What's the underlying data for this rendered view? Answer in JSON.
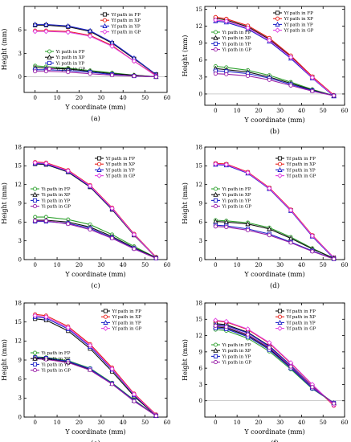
{
  "figure": {
    "ylabel": "Height (mm)",
    "xlabel": "Y coordinate (mm)"
  },
  "colors": {
    "FP": "#111111",
    "XP": "#e8201a",
    "YP": "#1e24c8",
    "GP": "#e040e0",
    "Yi_FP": "#2ea12e",
    "Yi_XP": "#111111",
    "Yi_YP": "#1e24c8",
    "Yi_GP": "#9a20a8"
  },
  "chart_data": [
    {
      "type": "line",
      "panel_label": "(a)",
      "xlabel": "Y coordinate (mm)",
      "ylabel": "Height (mm)",
      "xlim": [
        -5,
        60
      ],
      "ylim": [
        -2,
        9
      ],
      "xticks": [
        "0",
        "10",
        "20",
        "30",
        "40",
        "50",
        "60"
      ],
      "yticks": [
        "0",
        "3",
        "6"
      ],
      "x": [
        0,
        5,
        15,
        25,
        35,
        45,
        55
      ],
      "series": [
        {
          "name": "Yf path in FP",
          "values": [
            6.6,
            6.6,
            6.4,
            5.8,
            4.3,
            2.3,
            0.3
          ]
        },
        {
          "name": "Yf path in XP",
          "values": [
            5.9,
            5.9,
            5.8,
            5.3,
            4.0,
            2.0,
            0.2
          ]
        },
        {
          "name": "Yf path in YP",
          "values": [
            6.7,
            6.7,
            6.5,
            5.9,
            4.4,
            2.4,
            0.3
          ]
        },
        {
          "name": "Yf path in GP",
          "values": [
            5.8,
            5.8,
            5.7,
            5.2,
            3.9,
            2.0,
            0.1
          ]
        },
        {
          "name": "Yi path in FP",
          "values": [
            1.4,
            1.3,
            1.1,
            0.8,
            0.5,
            0.2,
            0.0
          ]
        },
        {
          "name": "Yi path in XP",
          "values": [
            1.2,
            1.1,
            1.0,
            0.7,
            0.4,
            0.2,
            0.0
          ]
        },
        {
          "name": "Yi path in YP",
          "values": [
            0.9,
            0.9,
            0.8,
            0.6,
            0.3,
            0.1,
            0.0
          ]
        },
        {
          "name": "Yi path in GP",
          "values": [
            0.7,
            0.7,
            0.6,
            0.4,
            0.2,
            0.1,
            0.0
          ]
        }
      ]
    },
    {
      "type": "line",
      "panel_label": "(b)",
      "xlabel": "Y coordinate (mm)",
      "ylabel": "Height (mm)",
      "xlim": [
        -5,
        60
      ],
      "ylim": [
        -2,
        15.5
      ],
      "xticks": [
        "0",
        "10",
        "20",
        "30",
        "40",
        "50",
        "60"
      ],
      "yticks": [
        "0",
        "3",
        "6",
        "9",
        "12",
        "15"
      ],
      "x": [
        0,
        5,
        15,
        25,
        35,
        45,
        55
      ],
      "series": [
        {
          "name": "Yf path in FP",
          "values": [
            13.4,
            13.1,
            11.9,
            9.7,
            6.6,
            3.0,
            -0.3
          ]
        },
        {
          "name": "Yf path in XP",
          "values": [
            13.6,
            13.3,
            12.1,
            9.9,
            6.8,
            3.1,
            -0.2
          ]
        },
        {
          "name": "Yf path in YP",
          "values": [
            12.9,
            12.7,
            11.5,
            9.3,
            6.3,
            2.8,
            -0.4
          ]
        },
        {
          "name": "Yf path in GP",
          "values": [
            13.1,
            12.9,
            11.7,
            9.5,
            6.5,
            2.9,
            -0.3
          ]
        },
        {
          "name": "Yi path in FP",
          "values": [
            4.9,
            4.7,
            4.2,
            3.3,
            2.1,
            0.8,
            -0.3
          ]
        },
        {
          "name": "Yi path in XP",
          "values": [
            4.5,
            4.3,
            3.9,
            3.0,
            1.9,
            0.7,
            -0.3
          ]
        },
        {
          "name": "Yi path in YP",
          "values": [
            4.1,
            4.0,
            3.6,
            2.8,
            1.7,
            0.6,
            -0.3
          ]
        },
        {
          "name": "Yi path in GP",
          "values": [
            3.6,
            3.5,
            3.2,
            2.5,
            1.5,
            0.5,
            -0.3
          ]
        }
      ]
    },
    {
      "type": "line",
      "panel_label": "(c)",
      "xlabel": "Y coordinate (mm)",
      "ylabel": "Height (mm)",
      "xlim": [
        -5,
        60
      ],
      "ylim": [
        0,
        18
      ],
      "xticks": [
        "0",
        "10",
        "20",
        "30",
        "40",
        "50",
        "60"
      ],
      "yticks": [
        "0",
        "3",
        "6",
        "9",
        "12",
        "15",
        "18"
      ],
      "x": [
        0,
        5,
        15,
        25,
        35,
        45,
        55
      ],
      "series": [
        {
          "name": "Yf path in FP",
          "values": [
            15.3,
            15.2,
            14.0,
            11.6,
            8.0,
            3.9,
            0.3
          ]
        },
        {
          "name": "Yf path in XP",
          "values": [
            15.6,
            15.5,
            14.3,
            11.9,
            8.3,
            4.1,
            0.4
          ]
        },
        {
          "name": "Yf path in YP",
          "values": [
            15.4,
            15.3,
            14.1,
            11.7,
            8.1,
            4.0,
            0.3
          ]
        },
        {
          "name": "Yf path in GP",
          "values": [
            15.5,
            15.4,
            14.2,
            11.8,
            8.2,
            4.0,
            0.3
          ]
        },
        {
          "name": "Yi path in FP",
          "values": [
            6.8,
            6.8,
            6.4,
            5.6,
            4.0,
            2.1,
            0.3
          ]
        },
        {
          "name": "Yi path in XP",
          "values": [
            6.3,
            6.3,
            6.0,
            5.2,
            3.7,
            1.9,
            0.3
          ]
        },
        {
          "name": "Yi path in YP",
          "values": [
            6.1,
            6.1,
            5.8,
            5.0,
            3.5,
            1.8,
            0.2
          ]
        },
        {
          "name": "Yi path in GP",
          "values": [
            6.2,
            6.2,
            5.7,
            4.8,
            3.4,
            1.7,
            0.2
          ]
        }
      ]
    },
    {
      "type": "line",
      "panel_label": "(d)",
      "xlabel": "Y coordinate (mm)",
      "ylabel": "Height (mm)",
      "xlim": [
        -5,
        60
      ],
      "ylim": [
        0,
        18
      ],
      "xticks": [
        "0",
        "10",
        "20",
        "30",
        "40",
        "50",
        "60"
      ],
      "yticks": [
        "0",
        "3",
        "6",
        "9",
        "12",
        "15",
        "18"
      ],
      "x": [
        0,
        5,
        15,
        25,
        35,
        45,
        55
      ],
      "series": [
        {
          "name": "Yf path in FP",
          "values": [
            15.3,
            15.2,
            13.9,
            11.4,
            7.9,
            3.8,
            0.3
          ]
        },
        {
          "name": "Yf path in XP",
          "values": [
            15.4,
            15.3,
            14.0,
            11.5,
            8.0,
            3.9,
            0.3
          ]
        },
        {
          "name": "Yf path in YP",
          "values": [
            15.2,
            15.1,
            13.8,
            11.3,
            7.8,
            3.7,
            0.2
          ]
        },
        {
          "name": "Yf path in GP",
          "values": [
            15.3,
            15.2,
            13.9,
            11.4,
            7.9,
            3.8,
            0.3
          ]
        },
        {
          "name": "Yi path in FP",
          "values": [
            6.3,
            6.2,
            5.9,
            5.1,
            3.6,
            1.8,
            0.2
          ]
        },
        {
          "name": "Yi path in XP",
          "values": [
            6.1,
            6.0,
            5.7,
            4.9,
            3.4,
            1.7,
            0.2
          ]
        },
        {
          "name": "Yi path in YP",
          "values": [
            5.5,
            5.4,
            4.9,
            4.1,
            2.8,
            1.4,
            0.1
          ]
        },
        {
          "name": "Yi path in GP",
          "values": [
            5.3,
            5.2,
            4.7,
            3.9,
            2.7,
            1.3,
            0.1
          ]
        }
      ]
    },
    {
      "type": "line",
      "panel_label": "(e)",
      "xlabel": "Y coordinate (mm)",
      "ylabel": "Height (mm)",
      "xlim": [
        -5,
        60
      ],
      "ylim": [
        0,
        18
      ],
      "xticks": [
        "0",
        "10",
        "20",
        "30",
        "40",
        "50",
        "60"
      ],
      "yticks": [
        "0",
        "3",
        "6",
        "9",
        "12",
        "15",
        "18"
      ],
      "x": [
        0,
        5,
        15,
        25,
        35,
        45,
        55
      ],
      "series": [
        {
          "name": "Yf path in FP",
          "values": [
            15.5,
            15.3,
            13.6,
            10.8,
            7.2,
            3.3,
            0.2
          ]
        },
        {
          "name": "Yf path in XP",
          "values": [
            16.2,
            16.0,
            14.3,
            11.5,
            7.8,
            3.7,
            0.4
          ]
        },
        {
          "name": "Yf path in YP",
          "values": [
            15.8,
            15.6,
            13.9,
            11.1,
            7.5,
            3.5,
            0.3
          ]
        },
        {
          "name": "Yf path in GP",
          "values": [
            16.0,
            15.8,
            14.1,
            11.3,
            7.6,
            3.6,
            0.3
          ]
        },
        {
          "name": "Yi path in FP",
          "values": [
            9.5,
            9.4,
            8.9,
            7.7,
            5.4,
            2.7,
            0.2
          ]
        },
        {
          "name": "Yi path in XP",
          "values": [
            9.3,
            9.2,
            8.7,
            7.5,
            5.3,
            2.6,
            0.2
          ]
        },
        {
          "name": "Yi path in YP",
          "values": [
            9.4,
            9.3,
            8.8,
            7.6,
            5.3,
            2.6,
            0.2
          ]
        },
        {
          "name": "Yi path in GP",
          "values": [
            9.2,
            9.1,
            8.6,
            7.4,
            5.2,
            2.5,
            0.2
          ]
        }
      ]
    },
    {
      "type": "line",
      "panel_label": "(f)",
      "xlabel": "Y coordinate (mm)",
      "ylabel": "Height (mm)",
      "xlim": [
        -5,
        60
      ],
      "ylim": [
        -3,
        18
      ],
      "xticks": [
        "0",
        "10",
        "20",
        "30",
        "40",
        "50",
        "60"
      ],
      "yticks": [
        "0",
        "3",
        "6",
        "9",
        "12",
        "15",
        "18"
      ],
      "x": [
        0,
        5,
        15,
        25,
        35,
        45,
        55
      ],
      "series": [
        {
          "name": "Yf path in FP",
          "values": [
            14.2,
            14.0,
            12.6,
            10.1,
            6.5,
            2.6,
            -0.6
          ]
        },
        {
          "name": "Yf path in XP",
          "values": [
            14.7,
            14.5,
            13.1,
            10.6,
            6.9,
            2.9,
            -0.9
          ]
        },
        {
          "name": "Yf path in YP",
          "values": [
            14.0,
            13.8,
            12.5,
            10.0,
            6.5,
            2.6,
            -0.5
          ]
        },
        {
          "name": "Yf path in GP",
          "values": [
            14.8,
            14.6,
            13.2,
            10.7,
            7.0,
            3.0,
            -0.8
          ]
        },
        {
          "name": "Yi path in FP",
          "values": [
            13.1,
            12.9,
            11.5,
            9.1,
            5.8,
            2.2,
            -0.4
          ]
        },
        {
          "name": "Yi path in XP",
          "values": [
            13.6,
            13.4,
            12.0,
            9.6,
            6.1,
            2.4,
            -0.4
          ]
        },
        {
          "name": "Yi path in YP",
          "values": [
            13.4,
            13.2,
            11.8,
            9.4,
            6.0,
            2.3,
            -0.4
          ]
        },
        {
          "name": "Yi path in GP",
          "values": [
            13.8,
            13.6,
            12.2,
            9.8,
            6.3,
            2.5,
            -0.5
          ]
        }
      ]
    }
  ]
}
